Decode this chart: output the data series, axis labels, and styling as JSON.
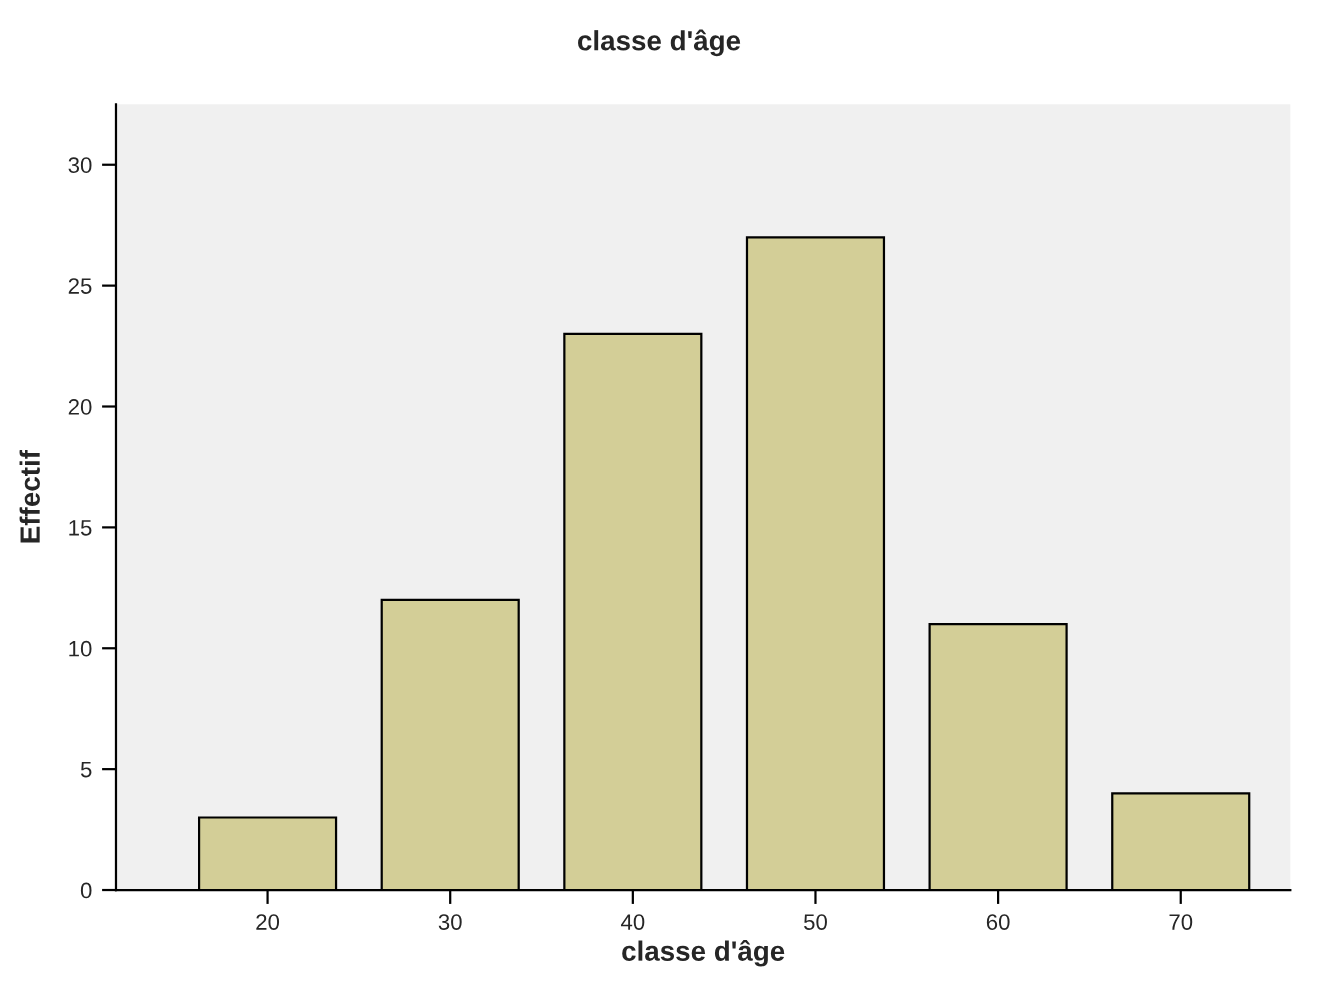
{
  "chart_data": {
    "type": "bar",
    "title": "classe d'âge",
    "xlabel": "classe d'âge",
    "ylabel": "Effectif",
    "categories": [
      "20",
      "30",
      "40",
      "50",
      "60",
      "70"
    ],
    "values": [
      3,
      12,
      23,
      27,
      11,
      4
    ],
    "color": "#d3ce97",
    "ylim": [
      0,
      32.5
    ],
    "yticks": [
      0,
      5,
      10,
      15,
      20,
      25,
      30
    ],
    "grid": false,
    "legend": false
  }
}
